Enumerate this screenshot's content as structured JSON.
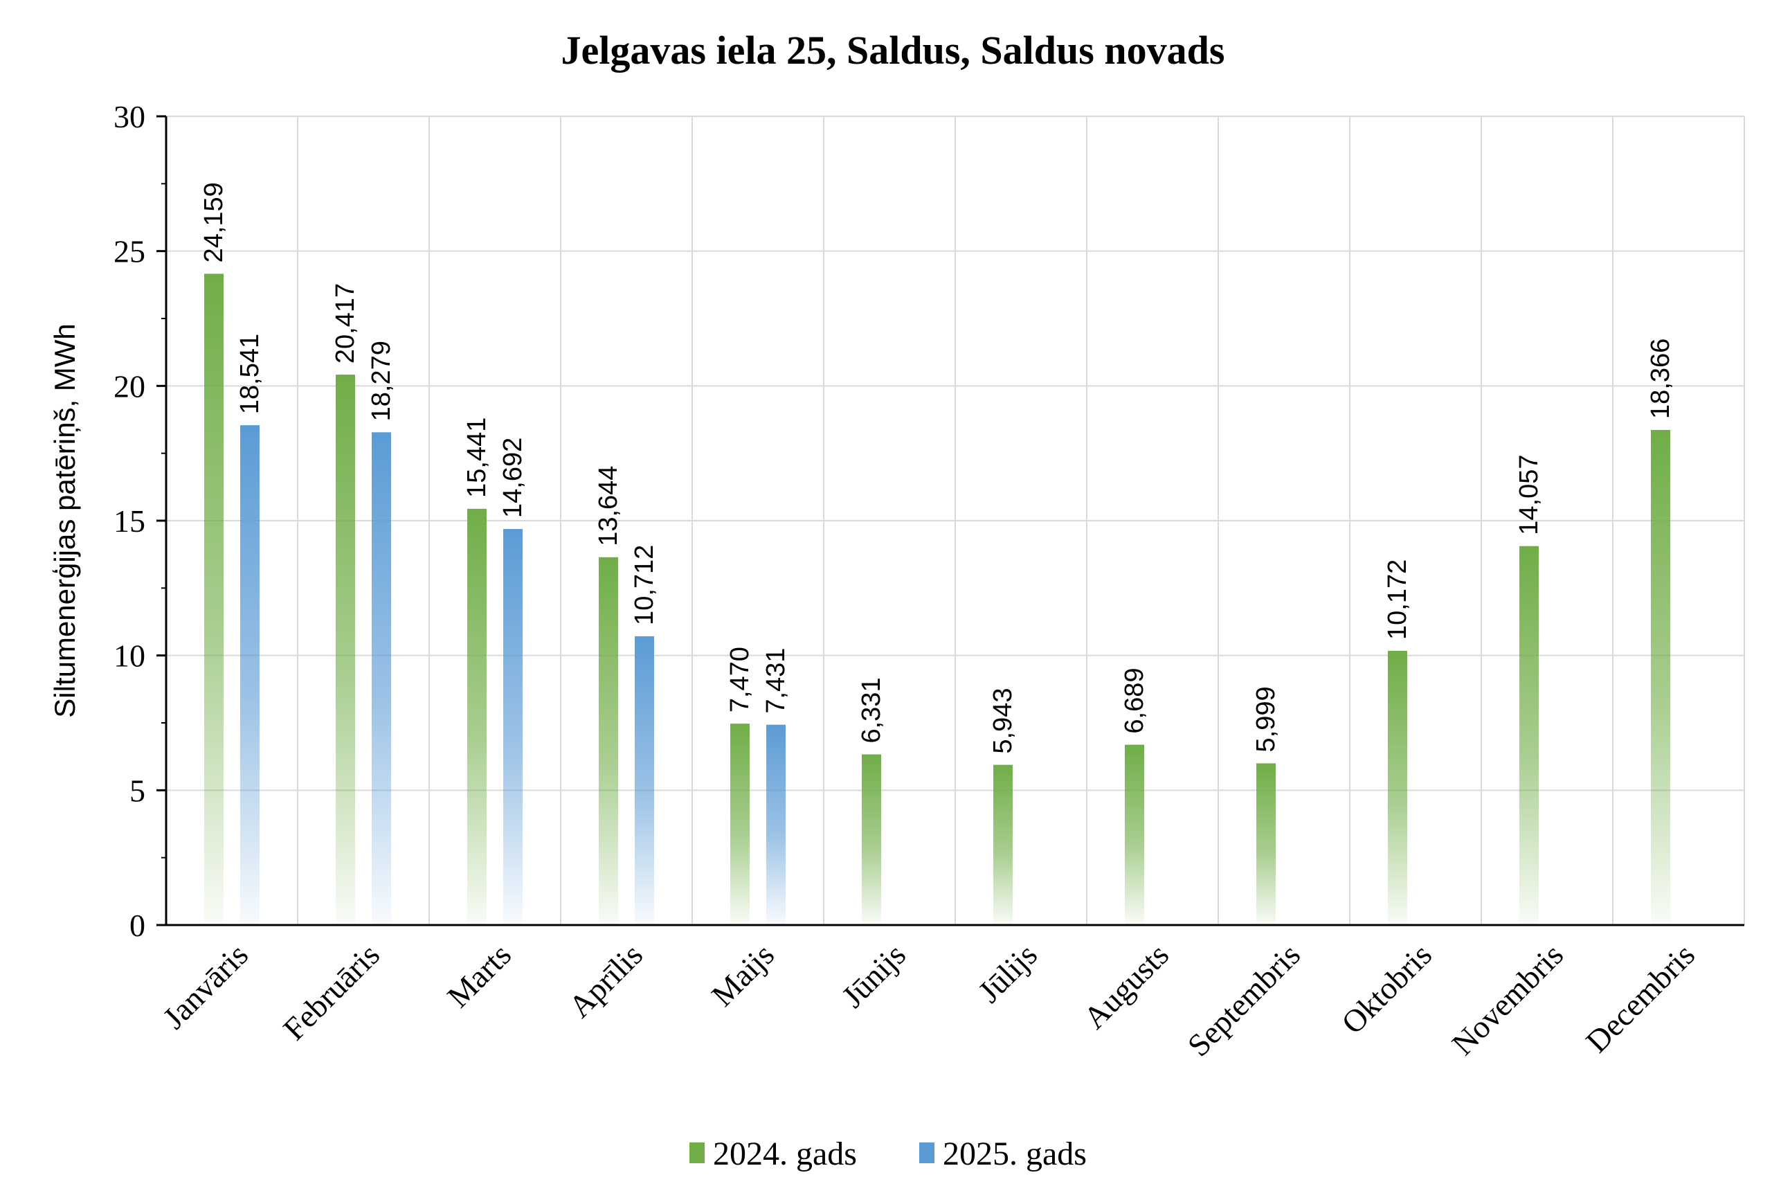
{
  "chart_data": {
    "type": "bar",
    "title": "Jelgavas iela 25, Saldus, Saldus novads",
    "ylabel": "Siltumenerģijas patēriņš, MWh",
    "xlabel": "",
    "ylim": [
      0,
      30
    ],
    "yticks": [
      "0",
      "5",
      "10",
      "15",
      "20",
      "25",
      "30"
    ],
    "categories": [
      "Janvāris",
      "Februāris",
      "Marts",
      "Aprīlis",
      "Maijs",
      "Jūnijs",
      "Jūlijs",
      "Augusts",
      "Septembris",
      "Oktobris",
      "Novembris",
      "Decembris"
    ],
    "series": [
      {
        "name": "2024. gads",
        "color": "#70ad47",
        "values": [
          24.159,
          20.417,
          15.441,
          13.644,
          7.47,
          6.331,
          5.943,
          6.689,
          5.999,
          10.172,
          14.057,
          18.366
        ],
        "labels": [
          "24,159",
          "20,417",
          "15,441",
          "13,644",
          "7,470",
          "6,331",
          "5,943",
          "6,689",
          "5,999",
          "10,172",
          "14,057",
          "18,366"
        ]
      },
      {
        "name": "2025. gads",
        "color": "#5b9bd5",
        "values": [
          18.541,
          18.279,
          14.692,
          10.712,
          7.431,
          null,
          null,
          null,
          null,
          null,
          null,
          null
        ],
        "labels": [
          "18,541",
          "18,279",
          "14,692",
          "10,712",
          "7,431",
          null,
          null,
          null,
          null,
          null,
          null,
          null
        ]
      }
    ],
    "grid": true,
    "legend": "bottom"
  }
}
